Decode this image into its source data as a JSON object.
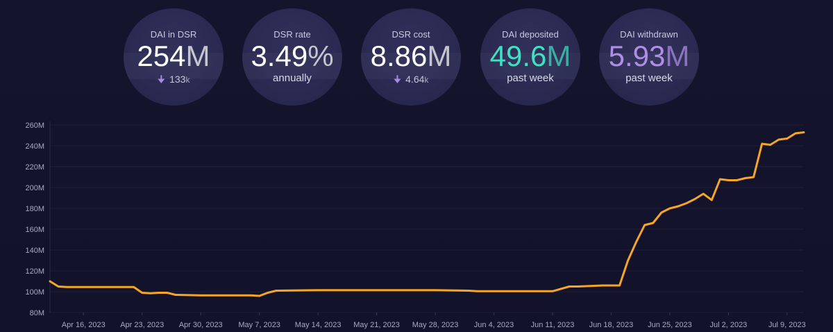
{
  "colors": {
    "background": "#13132a",
    "circle": "#2b2b52",
    "line": "#f5a623",
    "grid": "#1f1f38",
    "deposited": "#3fe0c4",
    "withdrawn": "#b08ee6",
    "arrow": "#a88be0"
  },
  "stats": {
    "dai_in_dsr": {
      "label": "DAI in DSR",
      "value": "254",
      "unit": "M",
      "change_icon": "arrow-down-icon",
      "change_value": "133",
      "change_unit": "k"
    },
    "dsr_rate": {
      "label": "DSR rate",
      "value": "3.49",
      "unit": "%",
      "sub": "annually"
    },
    "dsr_cost": {
      "label": "DSR cost",
      "value": "8.86",
      "unit": "M",
      "change_icon": "arrow-down-icon",
      "change_value": "4.64",
      "change_unit": "k"
    },
    "dai_deposited": {
      "label": "DAI deposited",
      "value": "49.6",
      "unit": "M",
      "sub": "past week"
    },
    "dai_withdrawn": {
      "label": "DAI withdrawn",
      "value": "5.93",
      "unit": "M",
      "sub": "past week"
    }
  },
  "chart_data": {
    "type": "line",
    "title": "",
    "xlabel": "",
    "ylabel": "",
    "ylim": [
      80,
      260
    ],
    "y_ticks": [
      80,
      100,
      120,
      140,
      160,
      180,
      200,
      220,
      240,
      260
    ],
    "y_tick_labels": [
      "80M",
      "100M",
      "120M",
      "140M",
      "160M",
      "180M",
      "200M",
      "220M",
      "240M",
      "260M"
    ],
    "x_start": "2023-04-12",
    "x_end": "2023-07-11",
    "x_ticks": [
      "2023-04-16",
      "2023-04-23",
      "2023-04-30",
      "2023-05-07",
      "2023-05-14",
      "2023-05-21",
      "2023-05-28",
      "2023-06-04",
      "2023-06-11",
      "2023-06-18",
      "2023-06-25",
      "2023-07-02",
      "2023-07-09"
    ],
    "x_tick_labels": [
      "Apr 16, 2023",
      "Apr 23, 2023",
      "Apr 30, 2023",
      "May 7, 2023",
      "May 14, 2023",
      "May 21, 2023",
      "May 28, 2023",
      "Jun 4, 2023",
      "Jun 11, 2023",
      "Jun 18, 2023",
      "Jun 25, 2023",
      "Jul 2, 2023",
      "Jul 9, 2023"
    ],
    "grid": true,
    "series": [
      {
        "x": [
          "2023-04-12",
          "2023-04-13",
          "2023-04-14",
          "2023-04-16",
          "2023-04-20",
          "2023-04-21",
          "2023-04-22",
          "2023-04-23",
          "2023-04-24",
          "2023-04-25",
          "2023-04-26",
          "2023-04-27",
          "2023-04-30",
          "2023-05-03",
          "2023-05-06",
          "2023-05-07",
          "2023-05-08",
          "2023-05-09",
          "2023-05-14",
          "2023-05-21",
          "2023-05-28",
          "2023-06-01",
          "2023-06-02",
          "2023-06-04",
          "2023-06-11",
          "2023-06-13",
          "2023-06-14",
          "2023-06-17",
          "2023-06-19",
          "2023-06-20",
          "2023-06-21",
          "2023-06-22",
          "2023-06-23",
          "2023-06-24",
          "2023-06-25",
          "2023-06-26",
          "2023-06-27",
          "2023-06-28",
          "2023-06-29",
          "2023-06-30",
          "2023-07-01",
          "2023-07-02",
          "2023-07-03",
          "2023-07-04",
          "2023-07-05",
          "2023-07-06",
          "2023-07-07",
          "2023-07-08",
          "2023-07-09",
          "2023-07-10",
          "2023-07-11"
        ],
        "y": [
          110,
          105,
          104.5,
          104.5,
          104.5,
          104.5,
          104.5,
          99,
          98.5,
          99,
          99,
          97,
          96.5,
          96.5,
          96.5,
          96,
          99,
          101,
          101.5,
          101.5,
          101.5,
          101,
          100.5,
          100.5,
          100.5,
          105,
          105,
          106,
          106,
          130,
          148,
          164,
          166,
          176,
          180,
          182,
          185,
          189,
          194,
          188,
          208,
          207,
          207,
          209,
          210,
          242,
          241,
          246,
          247,
          252,
          253
        ]
      }
    ]
  }
}
